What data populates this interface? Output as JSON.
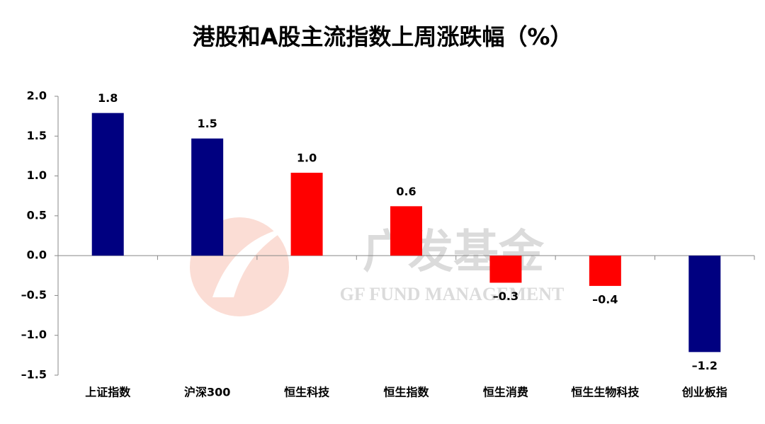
{
  "chart_data": {
    "type": "bar",
    "title": "港股和A股主流指数上周涨跌幅（%）",
    "categories": [
      "上证指数",
      "沪深300",
      "恒生科技",
      "恒生指数",
      "恒生消费",
      "恒生生物科技",
      "创业板指"
    ],
    "values": [
      1.79,
      1.47,
      1.04,
      0.62,
      -0.34,
      -0.38,
      -1.21
    ],
    "value_labels": [
      "1.8",
      "1.5",
      "1.0",
      "0.6",
      "–0.3",
      "–0.4",
      "–1.2"
    ],
    "colors": [
      "#000080",
      "#000080",
      "#ff0000",
      "#ff0000",
      "#ff0000",
      "#ff0000",
      "#000080"
    ],
    "ylim": [
      -1.5,
      2.0
    ],
    "yticks": [
      {
        "value": -1.5,
        "label": "–1.5"
      },
      {
        "value": -1.0,
        "label": "–1.0"
      },
      {
        "value": -0.5,
        "label": "–0.5"
      },
      {
        "value": 0,
        "label": "0.0"
      },
      {
        "value": 0.5,
        "label": "0.5"
      },
      {
        "value": 1.0,
        "label": "1.0"
      },
      {
        "value": 1.5,
        "label": "1.5"
      },
      {
        "value": 2.0,
        "label": "2.0"
      }
    ],
    "grid": false,
    "watermark": {
      "brand": "广发基金",
      "subtitle": "GF FUND MANAGEMENT"
    }
  }
}
